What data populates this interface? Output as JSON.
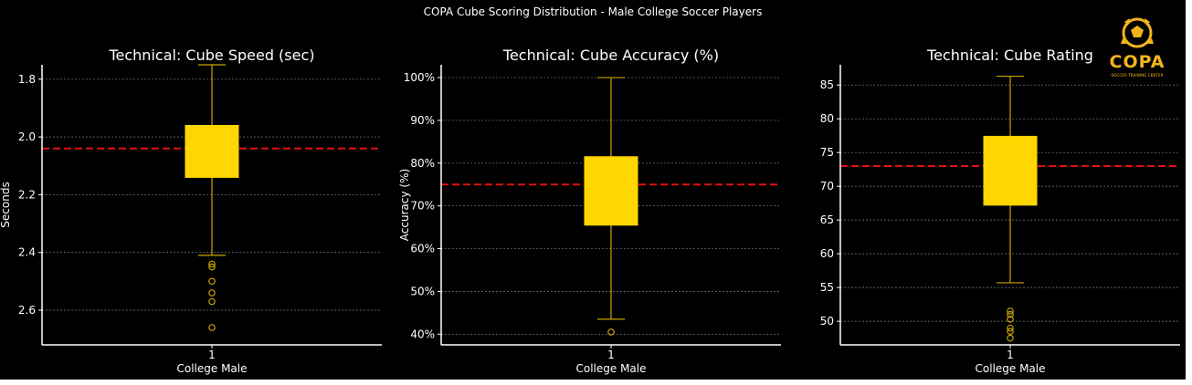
{
  "figure_title": "COPA Cube Scoring Distribution - Male College Soccer Players",
  "logo": {
    "text": "COPA",
    "subtext": "SOCCER TRAINING CENTER",
    "color": "#f2b51c"
  },
  "colors": {
    "background": "#000000",
    "box": "#ffd700",
    "whisker": "#c9a400",
    "mean_line": "#e01010",
    "text": "#ffffff",
    "grid": "#808080"
  },
  "chart_data": [
    {
      "type": "box",
      "title": "Technical: Cube Speed (sec)",
      "xlabel": "College Male",
      "ylabel": "Seconds",
      "categories": [
        "1"
      ],
      "ylim": [
        1.75,
        2.72
      ],
      "inverted": true,
      "yticks": [
        1.8,
        2.0,
        2.2,
        2.4,
        2.6
      ],
      "ytick_labels": [
        "1.8",
        "2.0",
        "2.2",
        "2.4",
        "2.6"
      ],
      "box": {
        "whisker_low": 1.75,
        "q1": 1.96,
        "q3": 2.14,
        "whisker_high": 2.41
      },
      "outliers": [
        2.44,
        2.45,
        2.5,
        2.54,
        2.57,
        2.66
      ],
      "reference_line": 2.04,
      "grid": true
    },
    {
      "type": "box",
      "title": "Technical: Cube Accuracy (%)",
      "xlabel": "College Male",
      "ylabel": "Accuracy (%)",
      "categories": [
        "1"
      ],
      "ylim": [
        37.5,
        103
      ],
      "inverted": false,
      "yticks": [
        40,
        50,
        60,
        70,
        80,
        90,
        100
      ],
      "ytick_labels": [
        "40%",
        "50%",
        "60%",
        "70%",
        "80%",
        "90%",
        "100%"
      ],
      "box": {
        "whisker_low": 43.5,
        "q1": 65.5,
        "q3": 81.5,
        "whisker_high": 100
      },
      "outliers": [
        40.5
      ],
      "reference_line": 75,
      "grid": true
    },
    {
      "type": "box",
      "title": "Technical: Cube Rating",
      "xlabel": "College Male",
      "ylabel": "",
      "categories": [
        "1"
      ],
      "ylim": [
        46.5,
        88
      ],
      "inverted": false,
      "yticks": [
        50,
        55,
        60,
        65,
        70,
        75,
        80,
        85
      ],
      "ytick_labels": [
        "50",
        "55",
        "60",
        "65",
        "70",
        "75",
        "80",
        "85"
      ],
      "box": {
        "whisker_low": 55.7,
        "q1": 67.2,
        "q3": 77.4,
        "whisker_high": 86.3
      },
      "outliers": [
        47.5,
        48.5,
        49.0,
        50.3,
        51.0,
        51.5
      ],
      "reference_line": 73,
      "grid": true
    }
  ]
}
